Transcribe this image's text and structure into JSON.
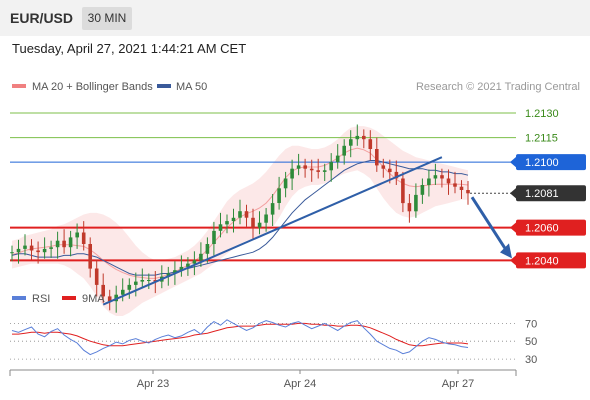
{
  "header": {
    "pair": "EUR/USD",
    "timeframe": "30 MIN",
    "timestamp": "Tuesday, April 27, 2021 1:44:21 AM CET"
  },
  "colors": {
    "bollinger": "#f08080",
    "ma50": "#3a5a9a",
    "resistance": "#7cbf4a",
    "pivot": "#1e64d8",
    "support": "#e02020",
    "rsi": "#5a7fd8",
    "rsi_ma": "#e02020",
    "candle_up": "#2e8b3a",
    "candle_down": "#c0392b",
    "arrow": "#2f5fa8"
  },
  "chart_data": [
    {
      "type": "line",
      "title": "",
      "legend": [
        {
          "name": "MA 20 + Bollinger Bands",
          "color": "#f08080"
        },
        {
          "name": "MA 50",
          "color": "#3a5a9a"
        }
      ],
      "legend_position": "top-left",
      "credit": "Research © 2021 Trading Central",
      "x_ticks": [
        "Apr 23",
        "Apr 24",
        "Apr 27"
      ],
      "ylim": [
        1.2028,
        1.2141
      ],
      "levels": [
        {
          "value": "1.2130",
          "kind": "resistance"
        },
        {
          "value": "1.2115",
          "kind": "resistance"
        },
        {
          "value": "1.2100",
          "kind": "pivot"
        },
        {
          "value": "1.2081",
          "kind": "current"
        },
        {
          "value": "1.2060",
          "kind": "support"
        },
        {
          "value": "1.2040",
          "kind": "support"
        }
      ],
      "close_series": [
        1.2045,
        1.2047,
        1.2049,
        1.2046,
        1.2045,
        1.2047,
        1.2048,
        1.2052,
        1.2048,
        1.2054,
        1.2057,
        1.205,
        1.2035,
        1.2025,
        1.2018,
        1.2015,
        1.2019,
        1.2022,
        1.2025,
        1.2027,
        1.2028,
        1.2028,
        1.2027,
        1.203,
        1.2032,
        1.2034,
        1.2036,
        1.2038,
        1.204,
        1.2044,
        1.205,
        1.2058,
        1.2062,
        1.2064,
        1.2066,
        1.207,
        1.2066,
        1.206,
        1.2063,
        1.2068,
        1.2075,
        1.2084,
        1.209,
        1.2096,
        1.2098,
        1.2096,
        1.2095,
        1.2094,
        1.2095,
        1.21,
        1.2104,
        1.211,
        1.2114,
        1.2116,
        1.2114,
        1.2108,
        1.2098,
        1.2096,
        1.2094,
        1.209,
        1.2075,
        1.207,
        1.208,
        1.2086,
        1.209,
        1.2092,
        1.209,
        1.2087,
        1.2085,
        1.2083,
        1.2081
      ],
      "ma50_series": [
        1.2043,
        1.2044,
        1.2044,
        1.2043,
        1.2042,
        1.2042,
        1.2042,
        1.2042,
        1.2043,
        1.2043,
        1.2044,
        1.2044,
        1.2043,
        1.2042,
        1.204,
        1.2038,
        1.2036,
        1.2034,
        1.2032,
        1.2031,
        1.2031,
        1.2031,
        1.2031,
        1.2032,
        1.2032,
        1.2033,
        1.2034,
        1.2035,
        1.2036,
        1.2037,
        1.2038,
        1.2039,
        1.204,
        1.2041,
        1.2042,
        1.2043,
        1.2044,
        1.2045,
        1.2047,
        1.205,
        1.2054,
        1.2059,
        1.2064,
        1.2069,
        1.2073,
        1.2077,
        1.208,
        1.2083,
        1.2086,
        1.2089,
        1.2092,
        1.2095,
        1.2097,
        1.2099,
        1.21,
        1.2101,
        1.2101,
        1.21,
        1.2099,
        1.2098,
        1.2097,
        1.2096,
        1.2096,
        1.2096,
        1.2095,
        1.2095,
        1.2094,
        1.2094,
        1.2093,
        1.2093,
        1.2092
      ],
      "bb_upper": [
        1.2052,
        1.2053,
        1.2055,
        1.2056,
        1.2057,
        1.2058,
        1.2059,
        1.2061,
        1.2062,
        1.2064,
        1.2066,
        1.2068,
        1.2069,
        1.2069,
        1.2068,
        1.2066,
        1.2063,
        1.2059,
        1.2054,
        1.2049,
        1.2045,
        1.2042,
        1.204,
        1.204,
        1.2041,
        1.2042,
        1.2044,
        1.2046,
        1.2049,
        1.2053,
        1.2058,
        1.2064,
        1.207,
        1.2076,
        1.208,
        1.2083,
        1.2085,
        1.2087,
        1.209,
        1.2094,
        1.2099,
        1.2104,
        1.2108,
        1.211,
        1.211,
        1.2109,
        1.2108,
        1.2108,
        1.2109,
        1.2111,
        1.2114,
        1.2118,
        1.2121,
        1.2122,
        1.2122,
        1.2121,
        1.2119,
        1.2116,
        1.2113,
        1.211,
        1.2107,
        1.2105,
        1.2103,
        1.2102,
        1.2101,
        1.21,
        1.2099,
        1.2098,
        1.2097,
        1.2096,
        1.2095
      ],
      "bb_lower": [
        1.2035,
        1.2036,
        1.2037,
        1.2038,
        1.2038,
        1.2038,
        1.2038,
        1.2038,
        1.2037,
        1.2035,
        1.2032,
        1.2029,
        1.2024,
        1.2018,
        1.2012,
        1.2008,
        1.2006,
        1.2006,
        1.2008,
        1.2011,
        1.2014,
        1.2016,
        1.2018,
        1.202,
        1.2022,
        1.2024,
        1.2026,
        1.2028,
        1.203,
        1.2032,
        1.2035,
        1.2038,
        1.2041,
        1.2044,
        1.2047,
        1.205,
        1.2052,
        1.2053,
        1.2054,
        1.2056,
        1.206,
        1.2066,
        1.2073,
        1.2079,
        1.2083,
        1.2085,
        1.2086,
        1.2086,
        1.2087,
        1.2089,
        1.2091,
        1.2093,
        1.2094,
        1.2095,
        1.2093,
        1.209,
        1.2084,
        1.2078,
        1.2073,
        1.2069,
        1.2067,
        1.2066,
        1.2067,
        1.2069,
        1.2071,
        1.2073,
        1.2074,
        1.2075,
        1.2076,
        1.2077,
        1.2077
      ],
      "forecast": {
        "from": 1.2081,
        "to": 1.204
      }
    },
    {
      "type": "line",
      "legend": [
        {
          "name": "RSI",
          "color": "#5a7fd8"
        },
        {
          "name": "9MA",
          "color": "#e02020"
        }
      ],
      "y_ticks": [
        "70",
        "50",
        "30"
      ],
      "ylim": [
        20,
        85
      ],
      "rsi_series": [
        62,
        60,
        63,
        66,
        58,
        55,
        61,
        64,
        57,
        52,
        48,
        40,
        35,
        38,
        42,
        45,
        49,
        47,
        51,
        53,
        50,
        48,
        52,
        55,
        57,
        54,
        56,
        60,
        63,
        58,
        66,
        72,
        68,
        74,
        70,
        66,
        62,
        65,
        70,
        73,
        71,
        68,
        66,
        70,
        72,
        68,
        64,
        67,
        70,
        66,
        62,
        67,
        71,
        73,
        65,
        58,
        50,
        46,
        42,
        40,
        36,
        38,
        44,
        50,
        54,
        52,
        49,
        47,
        46,
        44,
        43
      ],
      "rsi_ma_series": [
        58,
        58,
        59,
        60,
        60,
        59,
        60,
        60,
        59,
        58,
        56,
        53,
        50,
        48,
        46,
        45,
        45,
        45,
        46,
        47,
        48,
        49,
        50,
        51,
        52,
        53,
        54,
        55,
        57,
        58,
        59,
        61,
        63,
        65,
        66,
        67,
        67,
        67,
        68,
        69,
        69,
        69,
        69,
        69,
        70,
        70,
        69,
        69,
        68,
        68,
        67,
        67,
        68,
        68,
        67,
        65,
        62,
        59,
        56,
        52,
        49,
        46,
        45,
        45,
        46,
        47,
        48,
        48,
        48,
        48,
        47
      ]
    }
  ]
}
